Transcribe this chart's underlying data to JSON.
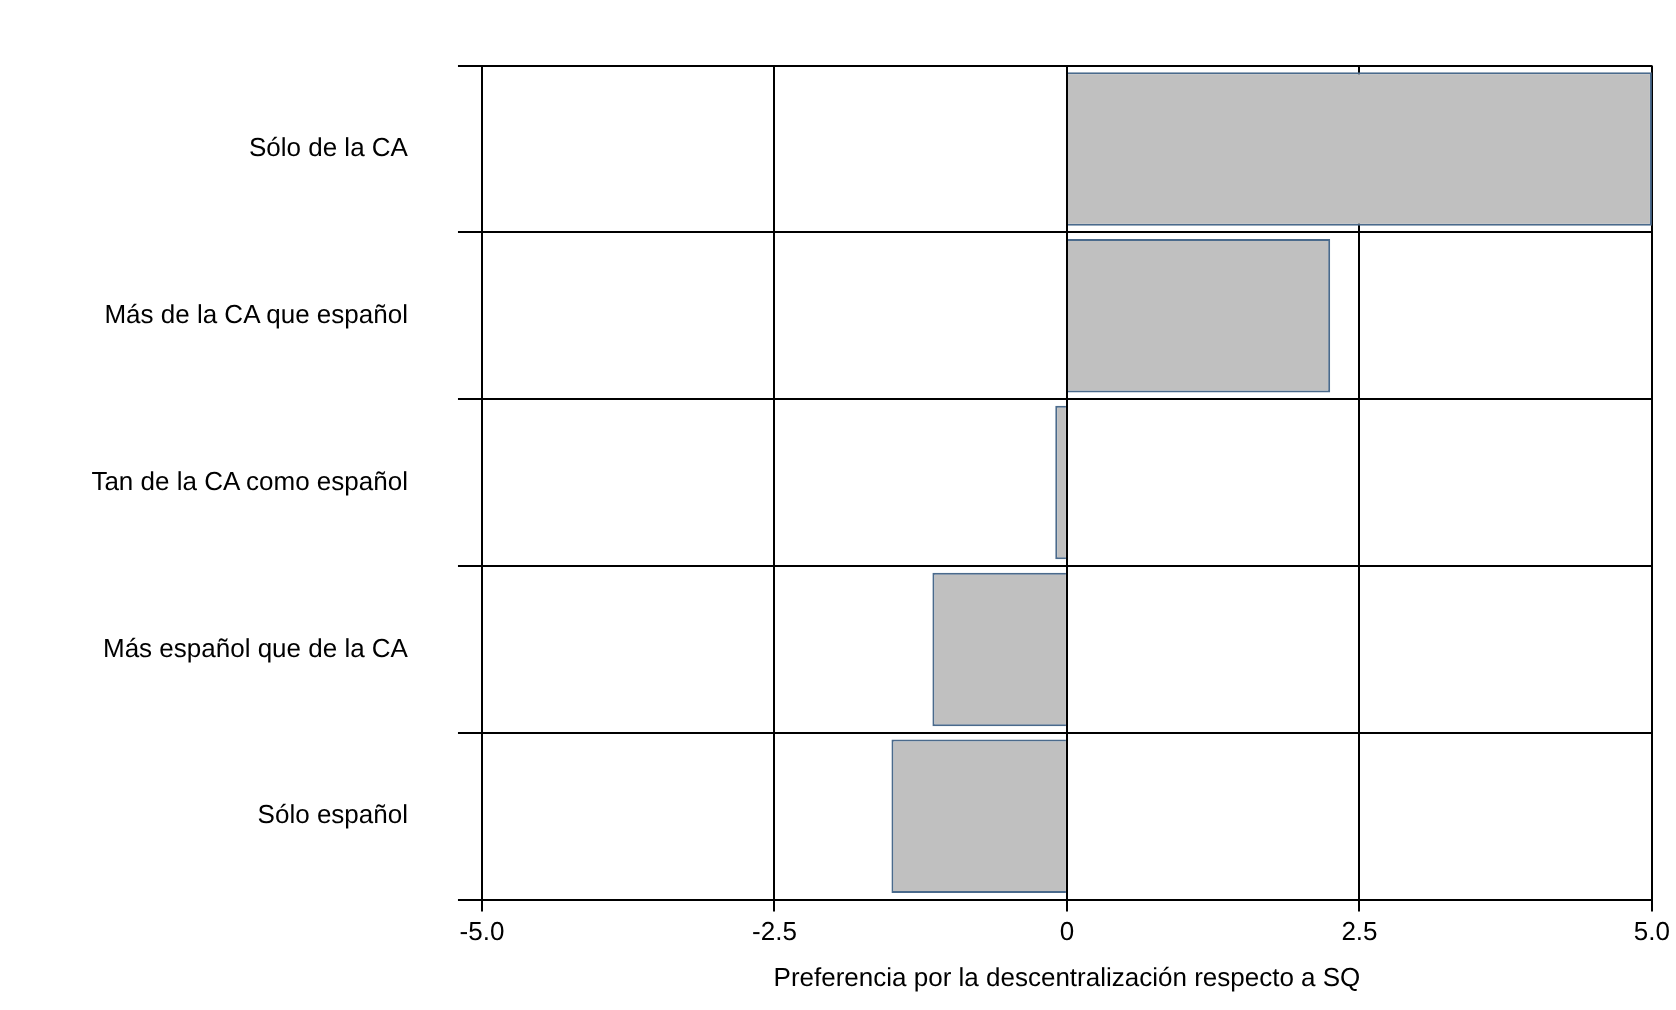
{
  "chart_data": {
    "type": "bar",
    "orientation": "horizontal",
    "xlabel": "Preferencia por la descentralización respecto a SQ",
    "categories": [
      "Sólo de la CA",
      "Más de la CA que español",
      "Tan de la CA como español",
      "Más español que de la CA",
      "Sólo español"
    ],
    "values": [
      5.0,
      2.25,
      -0.1,
      -1.15,
      -1.5
    ],
    "color": "#c0c0c0",
    "xlim": [
      -5,
      5
    ],
    "xticks": [
      {
        "value": -5,
        "label": "-5.0"
      },
      -2.5,
      0,
      2.5,
      {
        "value": 5,
        "label": "5.0"
      }
    ],
    "grid": true,
    "legend": false
  }
}
